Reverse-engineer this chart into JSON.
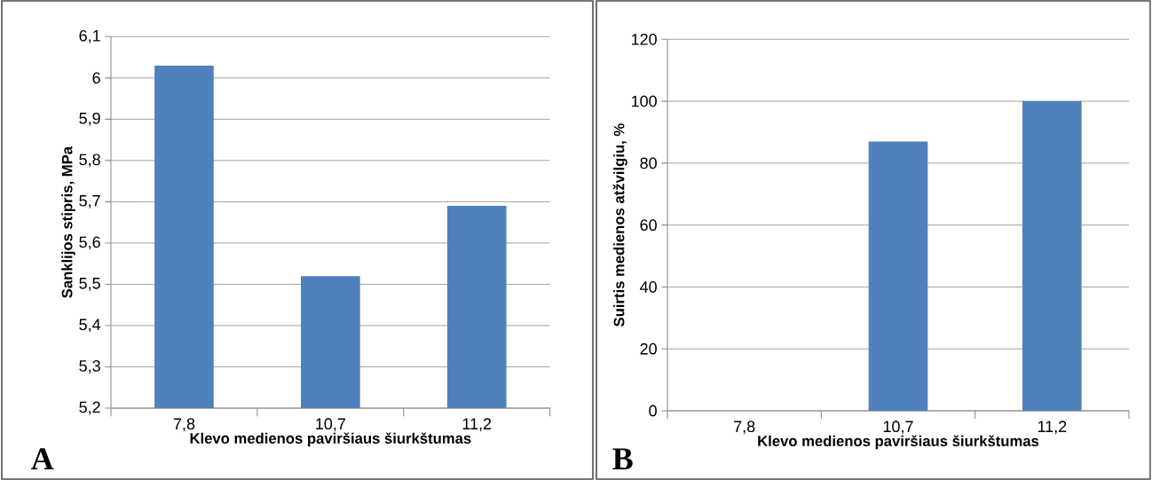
{
  "chart_data": [
    {
      "type": "bar",
      "categories": [
        "7,8",
        "10,7",
        "11,2"
      ],
      "values": [
        6.03,
        5.52,
        5.69
      ],
      "color": "#4f81bd",
      "ylim": [
        5.2,
        6.1
      ],
      "yticks": [
        {
          "value": 5.2,
          "label": "5,2"
        },
        {
          "value": 5.3,
          "label": "5,3"
        },
        {
          "value": 5.4,
          "label": "5,4"
        },
        {
          "value": 5.5,
          "label": "5,5"
        },
        {
          "value": 5.6,
          "label": "5,6"
        },
        {
          "value": 5.7,
          "label": "5,7"
        },
        {
          "value": 5.8,
          "label": "5,8"
        },
        {
          "value": 5.9,
          "label": "5,9"
        },
        {
          "value": 6.0,
          "label": "6"
        },
        {
          "value": 6.1,
          "label": "6,1"
        }
      ],
      "grid": "y",
      "xlabel": "Klevo medienos paviršiaus šiurkštumas",
      "ylabel": "Sanklijos stipris, MPa",
      "annotations": [
        "A"
      ]
    },
    {
      "type": "bar",
      "categories": [
        "7,8",
        "10,7",
        "11,2"
      ],
      "values": [
        0,
        87,
        100
      ],
      "color": "#4f81bd",
      "ylim": [
        0,
        120
      ],
      "yticks": [
        0,
        20,
        40,
        60,
        80,
        100,
        120
      ],
      "grid": "y",
      "xlabel": "Klevo medienos paviršiaus šiurkštumas",
      "ylabel": "Suirtis medienos atžvilgiu, %",
      "annotations": [
        "B"
      ]
    }
  ]
}
